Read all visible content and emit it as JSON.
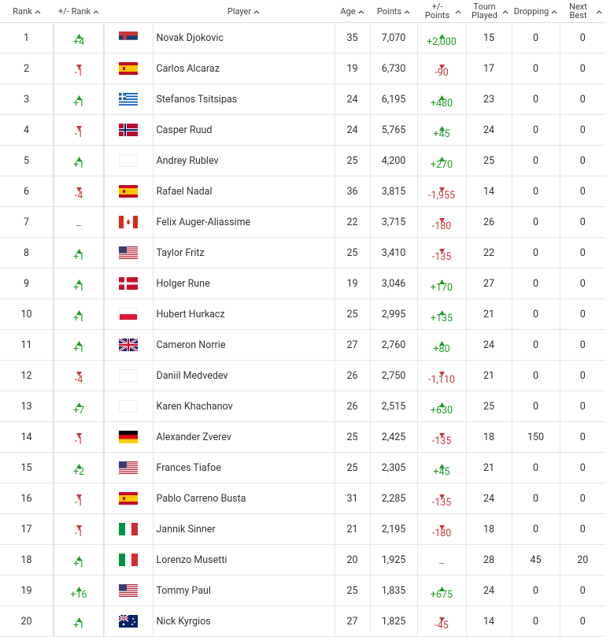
{
  "table": {
    "headers": [
      "Rank",
      "+/- Rank",
      "Player",
      "Age",
      "Points",
      "+/- Points",
      "Tourn Played",
      "Dropping",
      "Next Best"
    ],
    "rows": [
      [
        "1",
        "+4",
        "Novak Djokovic",
        "35",
        "7,070",
        "+2,000",
        "15",
        "0",
        "0"
      ],
      [
        "2",
        "-1",
        "Carlos Alcaraz",
        "19",
        "6,730",
        "-90",
        "17",
        "0",
        "0"
      ],
      [
        "3",
        "+1",
        "Stefanos Tsitsipas",
        "24",
        "6,195",
        "+480",
        "23",
        "0",
        "0"
      ],
      [
        "4",
        "-1",
        "Casper Ruud",
        "24",
        "5,765",
        "+45",
        "24",
        "0",
        "0"
      ],
      [
        "5",
        "+1",
        "Andrey Rublev",
        "25",
        "4,200",
        "+270",
        "25",
        "0",
        "0"
      ],
      [
        "6",
        "-4",
        "Rafael Nadal",
        "36",
        "3,815",
        "-1,955",
        "14",
        "0",
        "0"
      ],
      [
        "7",
        "–",
        "Felix Auger-Aliassime",
        "22",
        "3,715",
        "-180",
        "26",
        "0",
        "0"
      ],
      [
        "8",
        "+1",
        "Taylor Fritz",
        "25",
        "3,410",
        "-135",
        "22",
        "0",
        "0"
      ],
      [
        "9",
        "+1",
        "Holger Rune",
        "19",
        "3,046",
        "+170",
        "27",
        "0",
        "0"
      ],
      [
        "10",
        "+1",
        "Hubert Hurkacz",
        "25",
        "2,995",
        "+135",
        "21",
        "0",
        "0"
      ],
      [
        "11",
        "+1",
        "Cameron Norrie",
        "27",
        "2,760",
        "+80",
        "24",
        "0",
        "0"
      ],
      [
        "12",
        "-4",
        "Daniil Medvedev",
        "26",
        "2,750",
        "-1,110",
        "21",
        "0",
        "0"
      ],
      [
        "13",
        "+7",
        "Karen Khachanov",
        "26",
        "2,515",
        "+630",
        "25",
        "0",
        "0"
      ],
      [
        "14",
        "-1",
        "Alexander Zverev",
        "25",
        "2,425",
        "-135",
        "18",
        "150",
        "0"
      ],
      [
        "15",
        "+2",
        "Frances Tiafoe",
        "25",
        "2,305",
        "+45",
        "21",
        "0",
        "0"
      ],
      [
        "16",
        "-1",
        "Pablo Carreno Busta",
        "31",
        "2,285",
        "-135",
        "24",
        "0",
        "0"
      ],
      [
        "17",
        "-1",
        "Jannik Sinner",
        "21",
        "2,195",
        "-180",
        "18",
        "0",
        "0"
      ],
      [
        "18",
        "+1",
        "Lorenzo Musetti",
        "20",
        "1,925",
        "–",
        "28",
        "45",
        "20"
      ],
      [
        "19",
        "+16",
        "Tommy Paul",
        "25",
        "1,835",
        "+675",
        "24",
        "0",
        "0"
      ],
      [
        "20",
        "+1",
        "Nick Kyrgios",
        "27",
        "1,825",
        "-45",
        "14",
        "0",
        "0"
      ]
    ]
  }
}
